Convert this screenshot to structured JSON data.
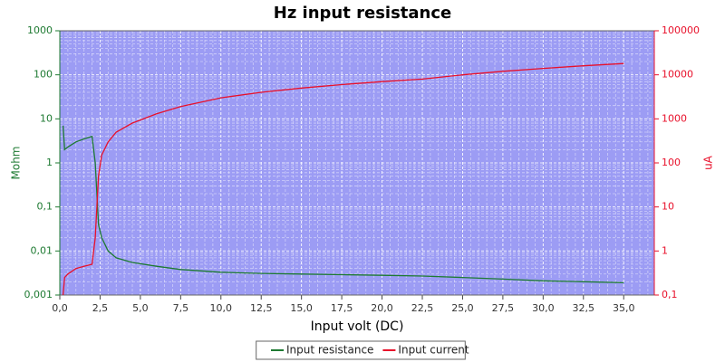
{
  "chart_data": {
    "type": "line",
    "title": "Hz input resistance",
    "xlabel": "Input volt (DC)",
    "ylabel": "Mohm",
    "y2label": "uA",
    "x": [
      0.2,
      0.3,
      0.5,
      1.0,
      1.5,
      2.0,
      2.2,
      2.4,
      2.6,
      3.0,
      3.5,
      4.5,
      6,
      7.5,
      10,
      12.5,
      15,
      17.5,
      20,
      22.5,
      25,
      27.5,
      30,
      32.5,
      35
    ],
    "series": [
      {
        "name": "Input resistance",
        "color": "#1e7a32",
        "axis": "y",
        "values": [
          7,
          2,
          2.3,
          3,
          3.5,
          4,
          1,
          0.04,
          0.02,
          0.01,
          0.007,
          0.0055,
          0.0045,
          0.0038,
          0.0033,
          0.0031,
          0.003,
          0.0029,
          0.0028,
          0.0027,
          0.0025,
          0.0023,
          0.0021,
          0.002,
          0.0019
        ]
      },
      {
        "name": "Input current",
        "color": "#e8102a",
        "axis": "y2",
        "values": [
          0.1,
          0.25,
          0.3,
          0.4,
          0.45,
          0.5,
          2,
          50,
          150,
          300,
          500,
          800,
          1300,
          1900,
          3000,
          4000,
          5000,
          6000,
          7000,
          8000,
          10000,
          12000,
          14000,
          16000,
          18000
        ]
      }
    ],
    "xlim": [
      0,
      36.9
    ],
    "xticks": [
      {
        "value": 0,
        "label": "0,0"
      },
      {
        "value": 2.5,
        "label": "2,5"
      },
      {
        "value": 5,
        "label": "5,0"
      },
      {
        "value": 7.5,
        "label": "7,5"
      },
      {
        "value": 10,
        "label": "10,0"
      },
      {
        "value": 12.5,
        "label": "12,5"
      },
      {
        "value": 15,
        "label": "15,0"
      },
      {
        "value": 17.5,
        "label": "17,5"
      },
      {
        "value": 20,
        "label": "20,0"
      },
      {
        "value": 22.5,
        "label": "22,5"
      },
      {
        "value": 25,
        "label": "25,0"
      },
      {
        "value": 27.5,
        "label": "27,5"
      },
      {
        "value": 30,
        "label": "30,0"
      },
      {
        "value": 32.5,
        "label": "32,5"
      },
      {
        "value": 35,
        "label": "35,0"
      }
    ],
    "ylim": [
      0.001,
      1000
    ],
    "ylog": true,
    "yticks": [
      {
        "value": 0.001,
        "label": "0,001"
      },
      {
        "value": 0.01,
        "label": "0,01"
      },
      {
        "value": 0.1,
        "label": "0,1"
      },
      1,
      10,
      100,
      1000
    ],
    "y2lim": [
      0.1,
      100000
    ],
    "y2log": true,
    "y2ticks": [
      {
        "value": 0.1,
        "label": "0,1"
      },
      1,
      10,
      100,
      1000,
      10000,
      100000
    ],
    "grid": true,
    "legend": "bottom",
    "plot_color": "#9c9cf4"
  }
}
